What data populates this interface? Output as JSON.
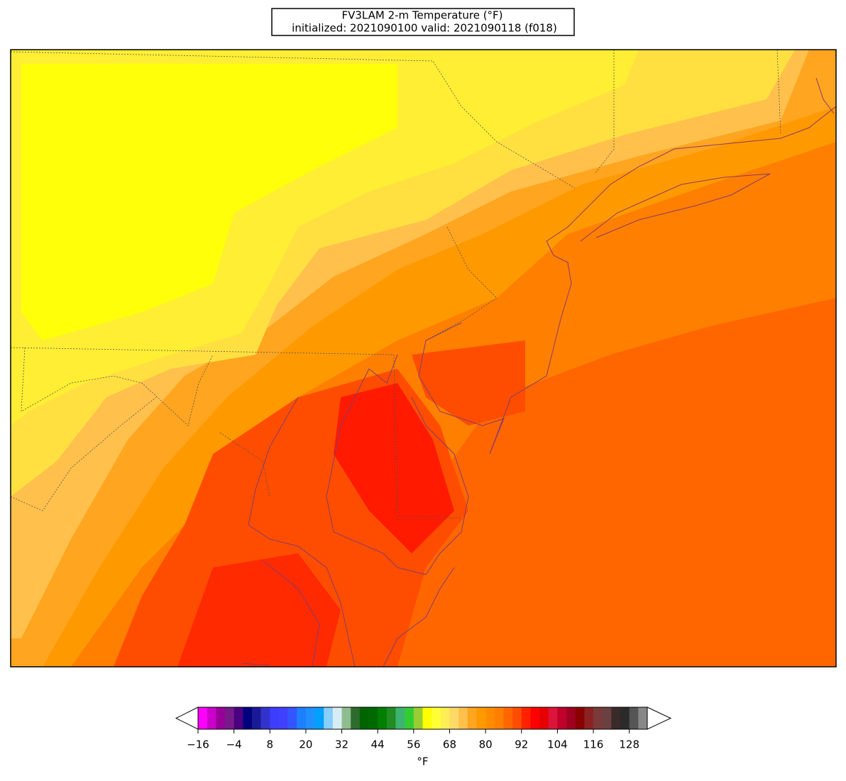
{
  "chart_data": {
    "type": "map",
    "title": "FV3LAM 2-m Temperature (°F)",
    "subtitle": "initialized: 2021090100 valid: 2021090118 (f018)",
    "colorbar": {
      "label": "°F",
      "lim": [
        -16,
        134
      ],
      "colors": [
        "#ff00ff",
        "#cc00cc",
        "#990099",
        "#761a8a",
        "#4b0082",
        "#00007f",
        "#1a1a99",
        "#3333cc",
        "#3d3dff",
        "#4040ff",
        "#3355ff",
        "#1e7fff",
        "#1e90ff",
        "#00a0ff",
        "#87cefa",
        "#d8ecf4",
        "#8fbc8f",
        "#2e6b2e",
        "#006400",
        "#006a00",
        "#007f00",
        "#228b22",
        "#3cb371",
        "#32cd32",
        "#9acd32",
        "#ffff00",
        "#ffff33",
        "#ffee55",
        "#ffd966",
        "#ffc04c",
        "#ffa520",
        "#ff9900",
        "#ff8c00",
        "#ff7f00",
        "#ff6600",
        "#ff4d00",
        "#ff2200",
        "#ff0000",
        "#e60000",
        "#dc143c",
        "#c0002a",
        "#a00020",
        "#8b0000",
        "#8b2222",
        "#7a3a3a",
        "#6b4040",
        "#3a2a2a",
        "#2b2b2b",
        "#555555",
        "#888888"
      ],
      "ticks": [
        {
          "value": -16,
          "label": "−16"
        },
        {
          "value": -4,
          "label": "−4"
        },
        8,
        20,
        32,
        44,
        56,
        68,
        80,
        92,
        104,
        116,
        128
      ]
    }
  }
}
